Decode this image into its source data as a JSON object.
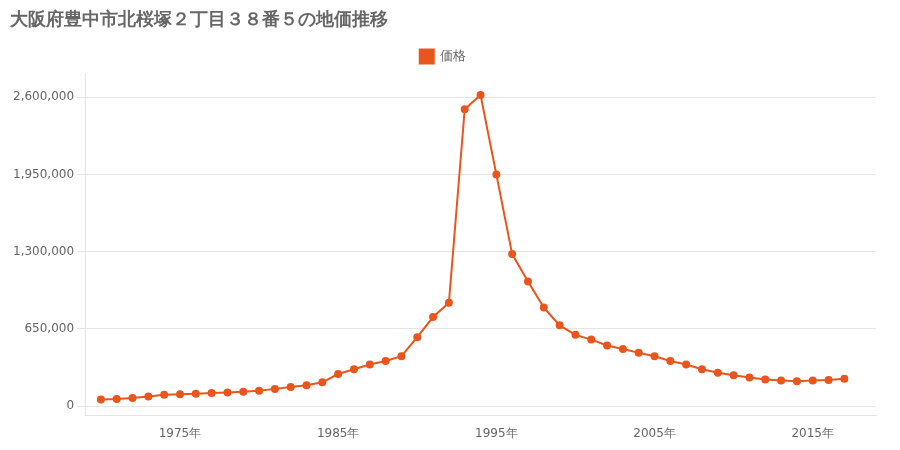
{
  "chart_data": {
    "type": "line",
    "title": "大阪府豊中市北桜塚２丁目３８番５の地価推移",
    "x": [
      1970,
      1971,
      1972,
      1973,
      1974,
      1975,
      1976,
      1977,
      1978,
      1979,
      1980,
      1981,
      1982,
      1983,
      1984,
      1985,
      1986,
      1987,
      1988,
      1989,
      1990,
      1991,
      1992,
      1993,
      1994,
      1995,
      1996,
      1997,
      1998,
      1999,
      2000,
      2001,
      2002,
      2003,
      2004,
      2005,
      2006,
      2007,
      2008,
      2009,
      2010,
      2011,
      2012,
      2013,
      2014,
      2015,
      2016,
      2017
    ],
    "series": [
      {
        "name": "価格",
        "color": "#e8561e",
        "marker": "circle",
        "values": [
          55000,
          60000,
          68000,
          80000,
          95000,
          100000,
          105000,
          110000,
          115000,
          120000,
          130000,
          145000,
          160000,
          175000,
          200000,
          270000,
          310000,
          350000,
          380000,
          420000,
          580000,
          750000,
          870000,
          2500000,
          2620000,
          1950000,
          1280000,
          1050000,
          830000,
          680000,
          600000,
          560000,
          510000,
          480000,
          450000,
          420000,
          380000,
          350000,
          310000,
          280000,
          260000,
          240000,
          225000,
          215000,
          210000,
          215000,
          220000,
          230000
        ]
      }
    ],
    "xlim": [
      1969,
      2019
    ],
    "xticks": [
      {
        "value": 1975,
        "label": "1975年"
      },
      {
        "value": 1985,
        "label": "1985年"
      },
      {
        "value": 1995,
        "label": "1995年"
      },
      {
        "value": 2005,
        "label": "2005年"
      },
      {
        "value": 2015,
        "label": "2015年"
      }
    ],
    "ylim": [
      -80000,
      2800000
    ],
    "yticks": [
      0,
      {
        "value": 650000,
        "label": "650,000"
      },
      {
        "value": 1300000,
        "label": "1,300,000"
      },
      {
        "value": 1950000,
        "label": "1,950,000"
      },
      {
        "value": 2600000,
        "label": "2,600,000"
      }
    ],
    "grid": "y",
    "legend": "top"
  }
}
